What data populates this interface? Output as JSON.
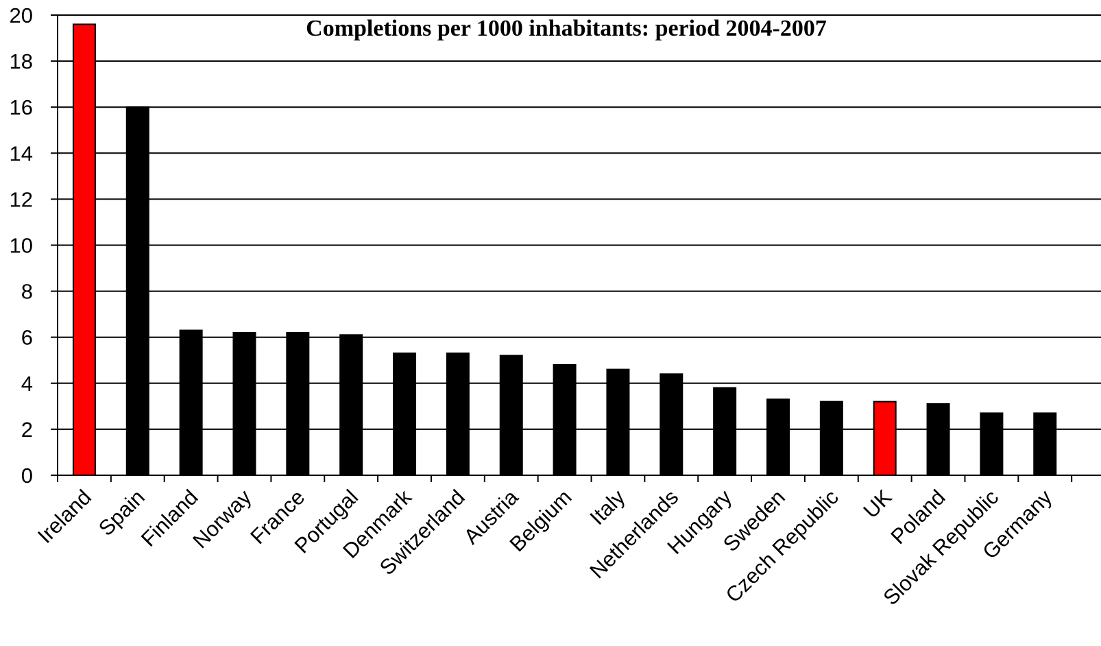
{
  "chart_data": {
    "type": "bar",
    "title": "Completions  per 1000 inhabitants:  period 2004-2007",
    "xlabel": "",
    "ylabel": "",
    "categories": [
      "Ireland",
      "Spain",
      "Finland",
      "Norway",
      "France",
      "Portugal",
      "Denmark",
      "Switzerland",
      "Austria",
      "Belgium",
      "Italy",
      "Netherlands",
      "Hungary",
      "Sweden",
      "Czech Republic",
      "UK",
      "Poland",
      "Slovak Republic",
      "Germany"
    ],
    "values": [
      19.6,
      16.0,
      6.3,
      6.2,
      6.2,
      6.1,
      5.3,
      5.3,
      5.2,
      4.8,
      4.6,
      4.4,
      3.8,
      3.3,
      3.2,
      3.2,
      3.1,
      2.7,
      2.7
    ],
    "highlighted": [
      "Ireland",
      "UK"
    ],
    "ylim": [
      0,
      20
    ],
    "yticks": [
      0,
      2,
      4,
      6,
      8,
      10,
      12,
      14,
      16,
      18,
      20
    ],
    "grid": true,
    "legend": "none",
    "colors": {
      "bar": "#000000",
      "highlight": "#ff0000",
      "grid": "#000000",
      "axis": "#000000"
    }
  }
}
